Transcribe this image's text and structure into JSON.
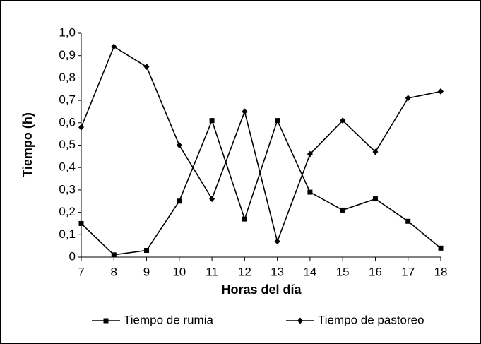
{
  "chart_data": {
    "type": "line",
    "x_label": "Horas del día",
    "y_label": "Tiempo (h)",
    "x": [
      7,
      8,
      9,
      10,
      11,
      12,
      13,
      14,
      15,
      16,
      17,
      18
    ],
    "xlim": [
      7,
      18
    ],
    "xticks": [
      7,
      8,
      9,
      10,
      11,
      12,
      13,
      14,
      15,
      16,
      17,
      18
    ],
    "ylim": [
      0,
      1
    ],
    "yticks": [
      0,
      {
        "value": 0.1,
        "label": "0,1"
      },
      {
        "value": 0.2,
        "label": "0,2"
      },
      {
        "value": 0.3,
        "label": "0,3"
      },
      {
        "value": 0.4,
        "label": "0,4"
      },
      {
        "value": 0.5,
        "label": "0,5"
      },
      {
        "value": 0.6,
        "label": "0,6"
      },
      {
        "value": 0.7,
        "label": "0,7"
      },
      {
        "value": 0.8,
        "label": "0,8"
      },
      {
        "value": 0.9,
        "label": "0,9"
      },
      {
        "value": 1.0,
        "label": "1,0"
      }
    ],
    "legend": "bottom",
    "series": [
      {
        "name": "Tiempo de rumia",
        "color": "#000000",
        "marker": "square",
        "values": [
          0.15,
          0.01,
          0.03,
          0.25,
          0.61,
          0.17,
          0.61,
          0.29,
          0.21,
          0.26,
          0.16,
          0.04
        ]
      },
      {
        "name": "Tiempo de pastoreo",
        "color": "#000000",
        "marker": "diamond",
        "values": [
          0.58,
          0.94,
          0.85,
          0.5,
          0.26,
          0.65,
          0.07,
          0.46,
          0.61,
          0.47,
          0.71,
          0.74
        ]
      }
    ]
  }
}
